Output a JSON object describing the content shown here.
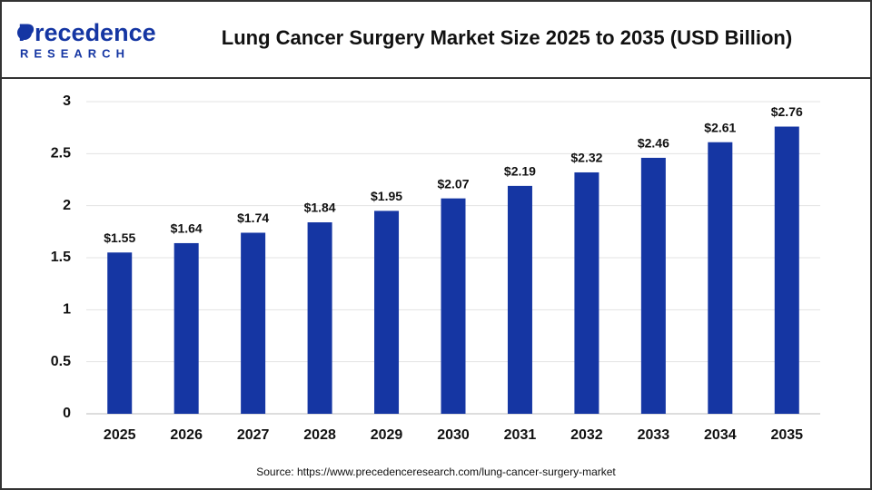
{
  "logo": {
    "name": "Precedence",
    "tagline": "RESEARCH"
  },
  "chart_data": {
    "type": "bar",
    "title": "Lung Cancer Surgery Market Size 2025 to 2035 (USD Billion)",
    "categories": [
      "2025",
      "2026",
      "2027",
      "2028",
      "2029",
      "2030",
      "2031",
      "2032",
      "2033",
      "2034",
      "2035"
    ],
    "values": [
      1.55,
      1.64,
      1.74,
      1.84,
      1.95,
      2.07,
      2.19,
      2.32,
      2.46,
      2.61,
      2.76
    ],
    "value_labels": [
      "$1.55",
      "$1.64",
      "$1.74",
      "$1.84",
      "$1.95",
      "$2.07",
      "$2.19",
      "$2.32",
      "$2.46",
      "$2.61",
      "$2.76"
    ],
    "color": "#1536a3",
    "ylim": [
      0,
      3
    ],
    "yticks": [
      0,
      0.5,
      1,
      1.5,
      2,
      2.5,
      3
    ],
    "grid": true,
    "source": "Source: https://www.precedenceresearch.com/lung-cancer-surgery-market"
  }
}
